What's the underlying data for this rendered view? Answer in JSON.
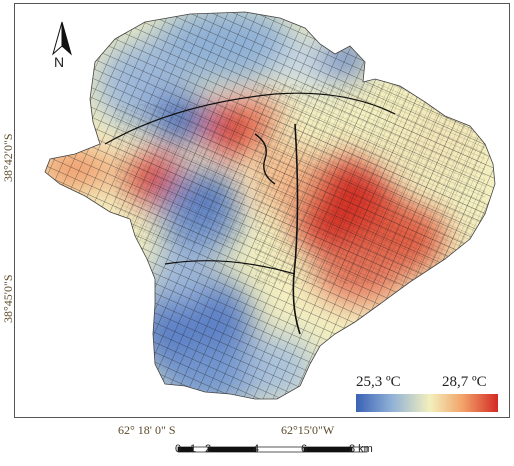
{
  "map": {
    "north_label": "N",
    "north_icon": "north-arrow-icon",
    "lat_labels": [
      "38°42'0\"S",
      "38°45'0\"S"
    ],
    "lon_labels": [
      "62° 18' 0\" S",
      "62°15'0\"W"
    ]
  },
  "legend": {
    "min_label": "25,3 ºC",
    "max_label": "28,7 ºC",
    "min_value": 25.3,
    "max_value": 28.7,
    "colors": [
      "#3a62b5",
      "#8fb0d6",
      "#f3f0bd",
      "#f2a36a",
      "#d42a25"
    ]
  },
  "scale_bar": {
    "labels": [
      "0",
      "1",
      "2",
      "4",
      "6",
      "8 km"
    ]
  }
}
